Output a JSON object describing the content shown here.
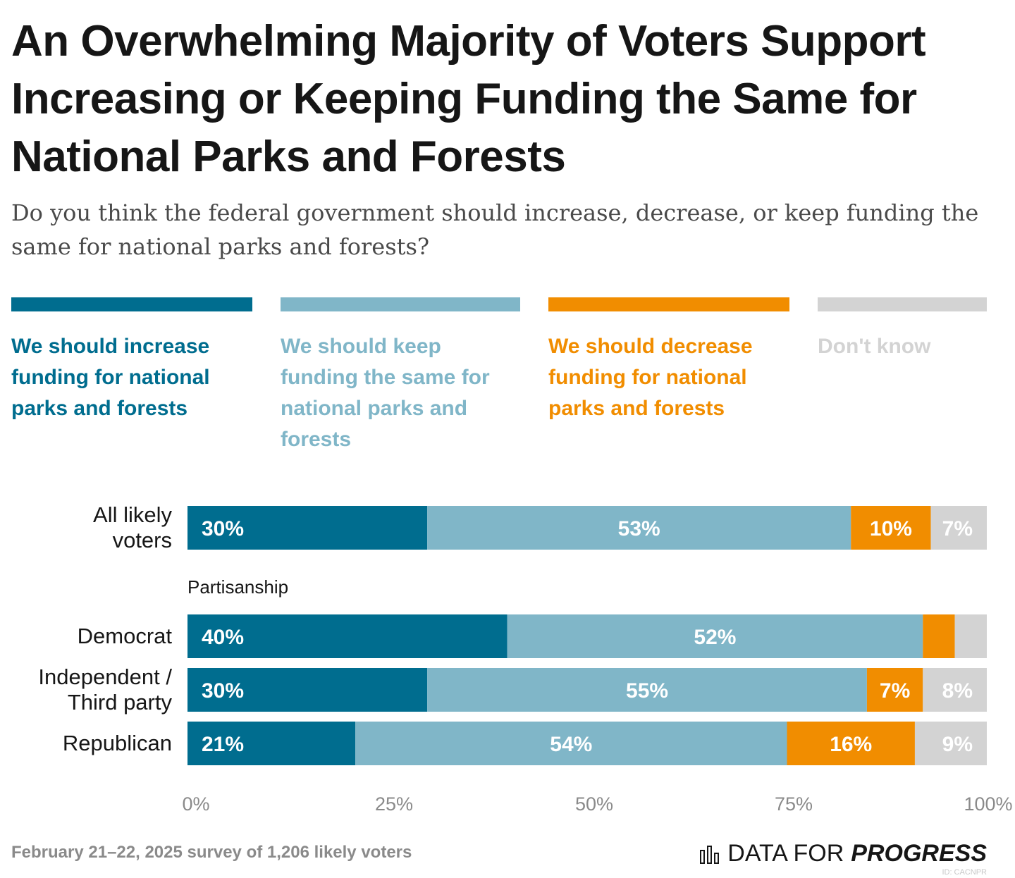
{
  "title": "An Overwhelming Majority of Voters Support Increasing or Keeping Funding the Same for National Parks and Forests",
  "subtitle": "Do you think the federal government should increase, decrease, or keep funding the same for national parks and forests?",
  "colors": {
    "increase": "#006d8f",
    "same": "#80b6c8",
    "decrease": "#f18d00",
    "dont_know": "#d3d3d3",
    "label_dark": "#161616",
    "axis_text": "#8a8a8a"
  },
  "legend": [
    {
      "label": "We should increase funding for national parks and forests",
      "color": "#006d8f"
    },
    {
      "label": "We should keep funding the same for national parks and forests",
      "color": "#80b6c8"
    },
    {
      "label": "We should decrease funding for national parks and forests",
      "color": "#f18d00"
    },
    {
      "label": "Don't know",
      "color": "#d3d3d3"
    }
  ],
  "chart_data": {
    "type": "bar",
    "orientation": "horizontal",
    "stacked": true,
    "xlim": [
      0,
      100
    ],
    "x_ticks": [
      "0%",
      "25%",
      "50%",
      "75%",
      "100%"
    ],
    "group_label": "Partisanship",
    "categories": [
      "All likely voters",
      "Democrat",
      "Independent / Third party",
      "Republican"
    ],
    "series": [
      {
        "name": "We should increase funding for national parks and forests",
        "values": [
          30,
          40,
          30,
          21
        ],
        "labels": [
          "30%",
          "40%",
          "30%",
          "21%"
        ]
      },
      {
        "name": "We should keep funding the same for national parks and forests",
        "values": [
          53,
          52,
          55,
          54
        ],
        "labels": [
          "53%",
          "52%",
          "55%",
          "54%"
        ]
      },
      {
        "name": "We should decrease funding for national parks and forests",
        "values": [
          10,
          4,
          7,
          16
        ],
        "labels": [
          "10%",
          "",
          "7%",
          "16%"
        ]
      },
      {
        "name": "Don't know",
        "values": [
          7,
          4,
          8,
          9
        ],
        "labels": [
          "7%",
          "",
          "8%",
          "9%"
        ]
      }
    ]
  },
  "footer": {
    "source": "February 21–22, 2025 survey of 1,206 likely voters",
    "brand_light": "DATA FOR",
    "brand_bold": "PROGRESS",
    "chart_id": "ID: CACNPR"
  }
}
